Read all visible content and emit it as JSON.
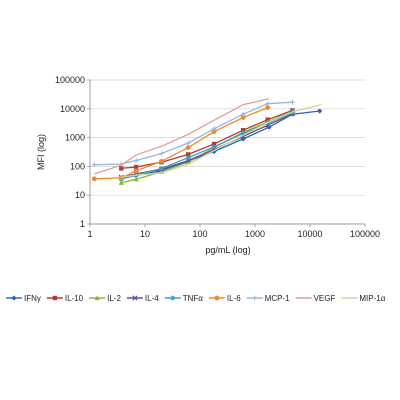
{
  "chart_data": {
    "type": "line",
    "xlabel": "pg/mL (log)",
    "ylabel": "MFI (log)",
    "x_scale": "log",
    "y_scale": "log",
    "xlim": [
      1,
      100000
    ],
    "ylim": [
      1,
      100000
    ],
    "x_ticks": [
      "1",
      "10",
      "100",
      "1000",
      "10000",
      "100000"
    ],
    "y_ticks": [
      "1",
      "10",
      "100",
      "1000",
      "10000",
      "100000"
    ],
    "grid": "horizontal major gridlines",
    "legend_position": "bottom",
    "series": [
      {
        "name": "IFNγ",
        "color": "#2e63b3",
        "marker": "diamond",
        "points": [
          [
            3.7,
            38
          ],
          [
            6.9,
            48
          ],
          [
            18,
            68
          ],
          [
            61,
            150
          ],
          [
            180,
            330
          ],
          [
            610,
            900
          ],
          [
            1800,
            2300
          ],
          [
            4800,
            6500
          ],
          [
            15000,
            8400
          ]
        ]
      },
      {
        "name": "IL-10",
        "color": "#b33a3a",
        "marker": "square",
        "points": [
          [
            3.7,
            85
          ],
          [
            6.9,
            95
          ],
          [
            20,
            140
          ],
          [
            61,
            260
          ],
          [
            180,
            600
          ],
          [
            610,
            1800
          ],
          [
            1700,
            4200
          ],
          [
            4800,
            8800
          ]
        ]
      },
      {
        "name": "IL-2",
        "color": "#8bb63e",
        "marker": "triangle",
        "points": [
          [
            3.7,
            27
          ],
          [
            6.9,
            36
          ],
          [
            20,
            65
          ],
          [
            61,
            140
          ],
          [
            180,
            450
          ],
          [
            600,
            1500
          ],
          [
            1700,
            3500
          ],
          [
            4900,
            8500
          ]
        ]
      },
      {
        "name": "IL-4",
        "color": "#6b4c9a",
        "marker": "x",
        "points": [
          [
            3.7,
            42
          ],
          [
            6.9,
            55
          ],
          [
            20,
            80
          ],
          [
            61,
            160
          ],
          [
            180,
            380
          ],
          [
            610,
            1100
          ],
          [
            1700,
            2700
          ],
          [
            4800,
            6800
          ]
        ]
      },
      {
        "name": "TNFα",
        "color": "#3aa0c2",
        "marker": "star",
        "points": [
          [
            3.7,
            36
          ],
          [
            6.9,
            50
          ],
          [
            20,
            85
          ],
          [
            61,
            200
          ],
          [
            180,
            480
          ],
          [
            610,
            1400
          ],
          [
            1800,
            3300
          ],
          [
            4800,
            7500
          ]
        ]
      },
      {
        "name": "IL-6",
        "color": "#ef8a2b",
        "marker": "circle",
        "points": [
          [
            1.2,
            37
          ],
          [
            3.7,
            40
          ],
          [
            6.9,
            70
          ],
          [
            20,
            150
          ],
          [
            61,
            450
          ],
          [
            180,
            1600
          ],
          [
            610,
            5000
          ],
          [
            1700,
            11000
          ]
        ]
      },
      {
        "name": "MCP-1",
        "color": "#9ab6df",
        "marker": "plus",
        "points": [
          [
            1.2,
            115
          ],
          [
            3.7,
            120
          ],
          [
            6.9,
            160
          ],
          [
            20,
            280
          ],
          [
            61,
            650
          ],
          [
            180,
            2000
          ],
          [
            610,
            6500
          ],
          [
            1700,
            15000
          ],
          [
            4800,
            17000
          ]
        ]
      },
      {
        "name": "VEGF",
        "color": "#e39a9a",
        "marker": "none",
        "points": [
          [
            1.2,
            55
          ],
          [
            3.7,
            110
          ],
          [
            6.9,
            250
          ],
          [
            20,
            500
          ],
          [
            61,
            1300
          ],
          [
            180,
            4000
          ],
          [
            610,
            14000
          ],
          [
            1800,
            22000
          ]
        ]
      },
      {
        "name": "MIP-1α",
        "color": "#cdd59b",
        "marker": "none",
        "points": [
          [
            3.7,
            42
          ],
          [
            6.9,
            50
          ],
          [
            20,
            60
          ],
          [
            61,
            120
          ],
          [
            180,
            350
          ],
          [
            610,
            1200
          ],
          [
            1800,
            3500
          ],
          [
            5000,
            8000
          ],
          [
            16000,
            14000
          ]
        ]
      }
    ]
  }
}
